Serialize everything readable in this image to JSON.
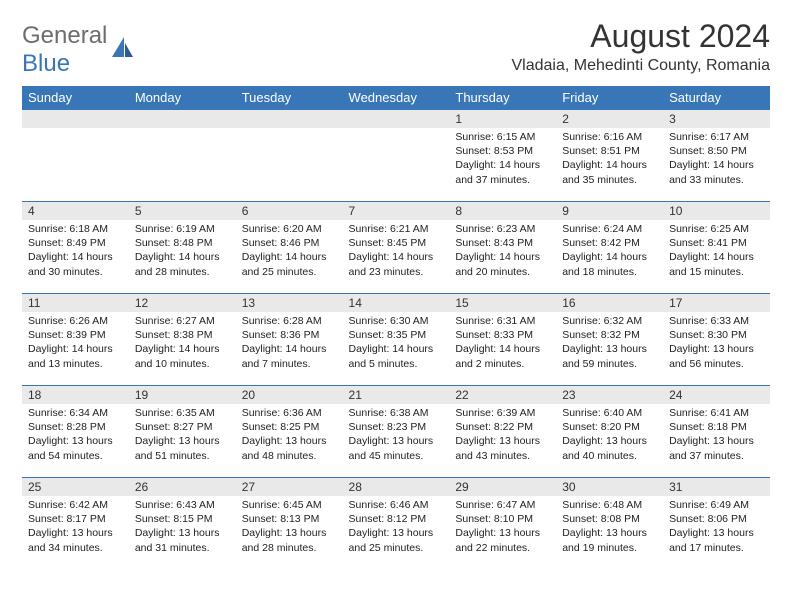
{
  "logo": {
    "text1": "General",
    "text2": "Blue"
  },
  "title": "August 2024",
  "location": "Vladaia, Mehedinti County, Romania",
  "colors": {
    "header_bg": "#3876b8",
    "header_text": "#ffffff",
    "daynum_bg": "#e9e9e9",
    "row_border": "#3876b8",
    "logo_gray": "#6d6d6d",
    "logo_blue": "#3876b8",
    "body_text": "#222222"
  },
  "weekdays": [
    "Sunday",
    "Monday",
    "Tuesday",
    "Wednesday",
    "Thursday",
    "Friday",
    "Saturday"
  ],
  "weeks": [
    [
      {
        "n": "",
        "sr": "",
        "ss": "",
        "dl1": "",
        "dl2": ""
      },
      {
        "n": "",
        "sr": "",
        "ss": "",
        "dl1": "",
        "dl2": ""
      },
      {
        "n": "",
        "sr": "",
        "ss": "",
        "dl1": "",
        "dl2": ""
      },
      {
        "n": "",
        "sr": "",
        "ss": "",
        "dl1": "",
        "dl2": ""
      },
      {
        "n": "1",
        "sr": "Sunrise: 6:15 AM",
        "ss": "Sunset: 8:53 PM",
        "dl1": "Daylight: 14 hours",
        "dl2": "and 37 minutes."
      },
      {
        "n": "2",
        "sr": "Sunrise: 6:16 AM",
        "ss": "Sunset: 8:51 PM",
        "dl1": "Daylight: 14 hours",
        "dl2": "and 35 minutes."
      },
      {
        "n": "3",
        "sr": "Sunrise: 6:17 AM",
        "ss": "Sunset: 8:50 PM",
        "dl1": "Daylight: 14 hours",
        "dl2": "and 33 minutes."
      }
    ],
    [
      {
        "n": "4",
        "sr": "Sunrise: 6:18 AM",
        "ss": "Sunset: 8:49 PM",
        "dl1": "Daylight: 14 hours",
        "dl2": "and 30 minutes."
      },
      {
        "n": "5",
        "sr": "Sunrise: 6:19 AM",
        "ss": "Sunset: 8:48 PM",
        "dl1": "Daylight: 14 hours",
        "dl2": "and 28 minutes."
      },
      {
        "n": "6",
        "sr": "Sunrise: 6:20 AM",
        "ss": "Sunset: 8:46 PM",
        "dl1": "Daylight: 14 hours",
        "dl2": "and 25 minutes."
      },
      {
        "n": "7",
        "sr": "Sunrise: 6:21 AM",
        "ss": "Sunset: 8:45 PM",
        "dl1": "Daylight: 14 hours",
        "dl2": "and 23 minutes."
      },
      {
        "n": "8",
        "sr": "Sunrise: 6:23 AM",
        "ss": "Sunset: 8:43 PM",
        "dl1": "Daylight: 14 hours",
        "dl2": "and 20 minutes."
      },
      {
        "n": "9",
        "sr": "Sunrise: 6:24 AM",
        "ss": "Sunset: 8:42 PM",
        "dl1": "Daylight: 14 hours",
        "dl2": "and 18 minutes."
      },
      {
        "n": "10",
        "sr": "Sunrise: 6:25 AM",
        "ss": "Sunset: 8:41 PM",
        "dl1": "Daylight: 14 hours",
        "dl2": "and 15 minutes."
      }
    ],
    [
      {
        "n": "11",
        "sr": "Sunrise: 6:26 AM",
        "ss": "Sunset: 8:39 PM",
        "dl1": "Daylight: 14 hours",
        "dl2": "and 13 minutes."
      },
      {
        "n": "12",
        "sr": "Sunrise: 6:27 AM",
        "ss": "Sunset: 8:38 PM",
        "dl1": "Daylight: 14 hours",
        "dl2": "and 10 minutes."
      },
      {
        "n": "13",
        "sr": "Sunrise: 6:28 AM",
        "ss": "Sunset: 8:36 PM",
        "dl1": "Daylight: 14 hours",
        "dl2": "and 7 minutes."
      },
      {
        "n": "14",
        "sr": "Sunrise: 6:30 AM",
        "ss": "Sunset: 8:35 PM",
        "dl1": "Daylight: 14 hours",
        "dl2": "and 5 minutes."
      },
      {
        "n": "15",
        "sr": "Sunrise: 6:31 AM",
        "ss": "Sunset: 8:33 PM",
        "dl1": "Daylight: 14 hours",
        "dl2": "and 2 minutes."
      },
      {
        "n": "16",
        "sr": "Sunrise: 6:32 AM",
        "ss": "Sunset: 8:32 PM",
        "dl1": "Daylight: 13 hours",
        "dl2": "and 59 minutes."
      },
      {
        "n": "17",
        "sr": "Sunrise: 6:33 AM",
        "ss": "Sunset: 8:30 PM",
        "dl1": "Daylight: 13 hours",
        "dl2": "and 56 minutes."
      }
    ],
    [
      {
        "n": "18",
        "sr": "Sunrise: 6:34 AM",
        "ss": "Sunset: 8:28 PM",
        "dl1": "Daylight: 13 hours",
        "dl2": "and 54 minutes."
      },
      {
        "n": "19",
        "sr": "Sunrise: 6:35 AM",
        "ss": "Sunset: 8:27 PM",
        "dl1": "Daylight: 13 hours",
        "dl2": "and 51 minutes."
      },
      {
        "n": "20",
        "sr": "Sunrise: 6:36 AM",
        "ss": "Sunset: 8:25 PM",
        "dl1": "Daylight: 13 hours",
        "dl2": "and 48 minutes."
      },
      {
        "n": "21",
        "sr": "Sunrise: 6:38 AM",
        "ss": "Sunset: 8:23 PM",
        "dl1": "Daylight: 13 hours",
        "dl2": "and 45 minutes."
      },
      {
        "n": "22",
        "sr": "Sunrise: 6:39 AM",
        "ss": "Sunset: 8:22 PM",
        "dl1": "Daylight: 13 hours",
        "dl2": "and 43 minutes."
      },
      {
        "n": "23",
        "sr": "Sunrise: 6:40 AM",
        "ss": "Sunset: 8:20 PM",
        "dl1": "Daylight: 13 hours",
        "dl2": "and 40 minutes."
      },
      {
        "n": "24",
        "sr": "Sunrise: 6:41 AM",
        "ss": "Sunset: 8:18 PM",
        "dl1": "Daylight: 13 hours",
        "dl2": "and 37 minutes."
      }
    ],
    [
      {
        "n": "25",
        "sr": "Sunrise: 6:42 AM",
        "ss": "Sunset: 8:17 PM",
        "dl1": "Daylight: 13 hours",
        "dl2": "and 34 minutes."
      },
      {
        "n": "26",
        "sr": "Sunrise: 6:43 AM",
        "ss": "Sunset: 8:15 PM",
        "dl1": "Daylight: 13 hours",
        "dl2": "and 31 minutes."
      },
      {
        "n": "27",
        "sr": "Sunrise: 6:45 AM",
        "ss": "Sunset: 8:13 PM",
        "dl1": "Daylight: 13 hours",
        "dl2": "and 28 minutes."
      },
      {
        "n": "28",
        "sr": "Sunrise: 6:46 AM",
        "ss": "Sunset: 8:12 PM",
        "dl1": "Daylight: 13 hours",
        "dl2": "and 25 minutes."
      },
      {
        "n": "29",
        "sr": "Sunrise: 6:47 AM",
        "ss": "Sunset: 8:10 PM",
        "dl1": "Daylight: 13 hours",
        "dl2": "and 22 minutes."
      },
      {
        "n": "30",
        "sr": "Sunrise: 6:48 AM",
        "ss": "Sunset: 8:08 PM",
        "dl1": "Daylight: 13 hours",
        "dl2": "and 19 minutes."
      },
      {
        "n": "31",
        "sr": "Sunrise: 6:49 AM",
        "ss": "Sunset: 8:06 PM",
        "dl1": "Daylight: 13 hours",
        "dl2": "and 17 minutes."
      }
    ]
  ]
}
